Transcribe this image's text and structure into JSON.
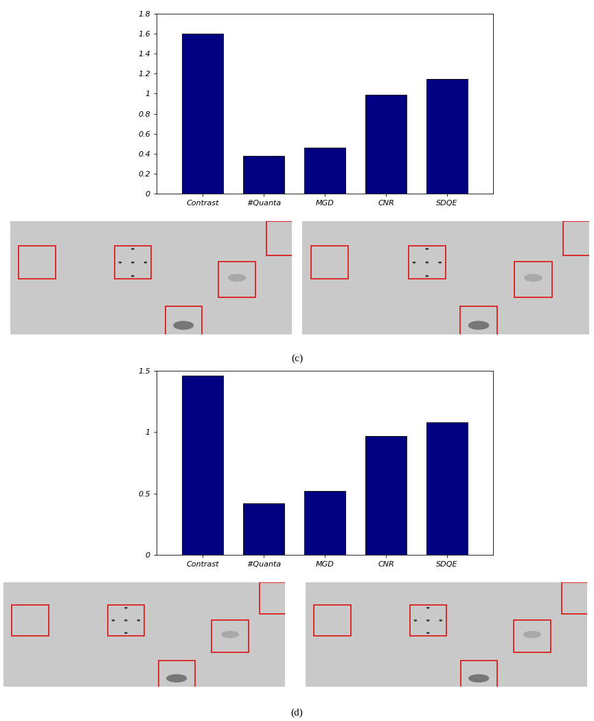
{
  "chart_data": [
    {
      "type": "bar",
      "caption": "(c)",
      "categories": [
        "Contrast",
        "#Quanta",
        "MGD",
        "CNR",
        "SDQE"
      ],
      "values": [
        1.6,
        0.38,
        0.46,
        0.99,
        1.15
      ],
      "color": "#000080",
      "ylim": [
        0,
        1.8
      ],
      "yticks": [
        0,
        0.2,
        0.4,
        0.6,
        0.8,
        1,
        1.2,
        1.4,
        1.6,
        1.8
      ]
    },
    {
      "type": "bar",
      "caption": "(d)",
      "categories": [
        "Contrast",
        "#Quanta",
        "MGD",
        "CNR",
        "SDQE"
      ],
      "values": [
        1.46,
        0.42,
        0.52,
        0.97,
        1.08
      ],
      "color": "#000080",
      "ylim": [
        0,
        1.5
      ],
      "yticks": [
        0,
        0.5,
        1,
        1.5
      ]
    }
  ]
}
